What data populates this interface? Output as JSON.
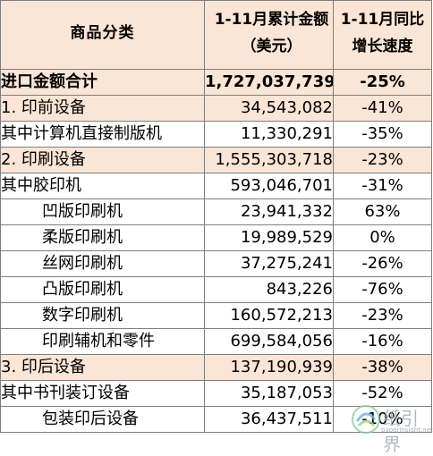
{
  "table": {
    "headers": {
      "category": "商品分类",
      "amount": "1-11月累计金额 （美元）",
      "growth": "1-11月同比 增长速度"
    },
    "rows": [
      {
        "name": "进口金额合计",
        "amount": "1,727,037,739",
        "growth": "-25%"
      },
      {
        "name": "1. 印前设备",
        "amount": "34,543,082",
        "growth": "-41%"
      },
      {
        "name": "其中计算机直接制版机",
        "amount": "11,330,291",
        "growth": "-35%"
      },
      {
        "name": "2. 印刷设备",
        "amount": "1,555,303,718",
        "growth": "-23%"
      },
      {
        "name": "其中胶印机",
        "amount": "593,046,701",
        "growth": "-31%"
      },
      {
        "name": "凹版印刷机",
        "amount": "23,941,332",
        "growth": "63%"
      },
      {
        "name": "柔版印刷机",
        "amount": "19,989,529",
        "growth": "0%"
      },
      {
        "name": "丝网印刷机",
        "amount": "37,275,241",
        "growth": "-26%"
      },
      {
        "name": "凸版印刷机",
        "amount": "843,226",
        "growth": "-76%"
      },
      {
        "name": "数字印刷机",
        "amount": "160,572,213",
        "growth": "-23%"
      },
      {
        "name": "印刷辅机和零件",
        "amount": "699,584,056",
        "growth": "-16%"
      },
      {
        "name": "3.  印后设备",
        "amount": "137,190,939",
        "growth": "-38%"
      },
      {
        "name": "其中书刊装订设备",
        "amount": "35,187,053",
        "growth": "-52%"
      },
      {
        "name": "包装印后设备",
        "amount": "36,437,511",
        "growth": "-10%"
      }
    ]
  },
  "watermark": {
    "text": "纸引界",
    "url": "paperinsight.net"
  },
  "colors": {
    "highlight": "#fbe5d6",
    "border": "#7f7f7f"
  }
}
